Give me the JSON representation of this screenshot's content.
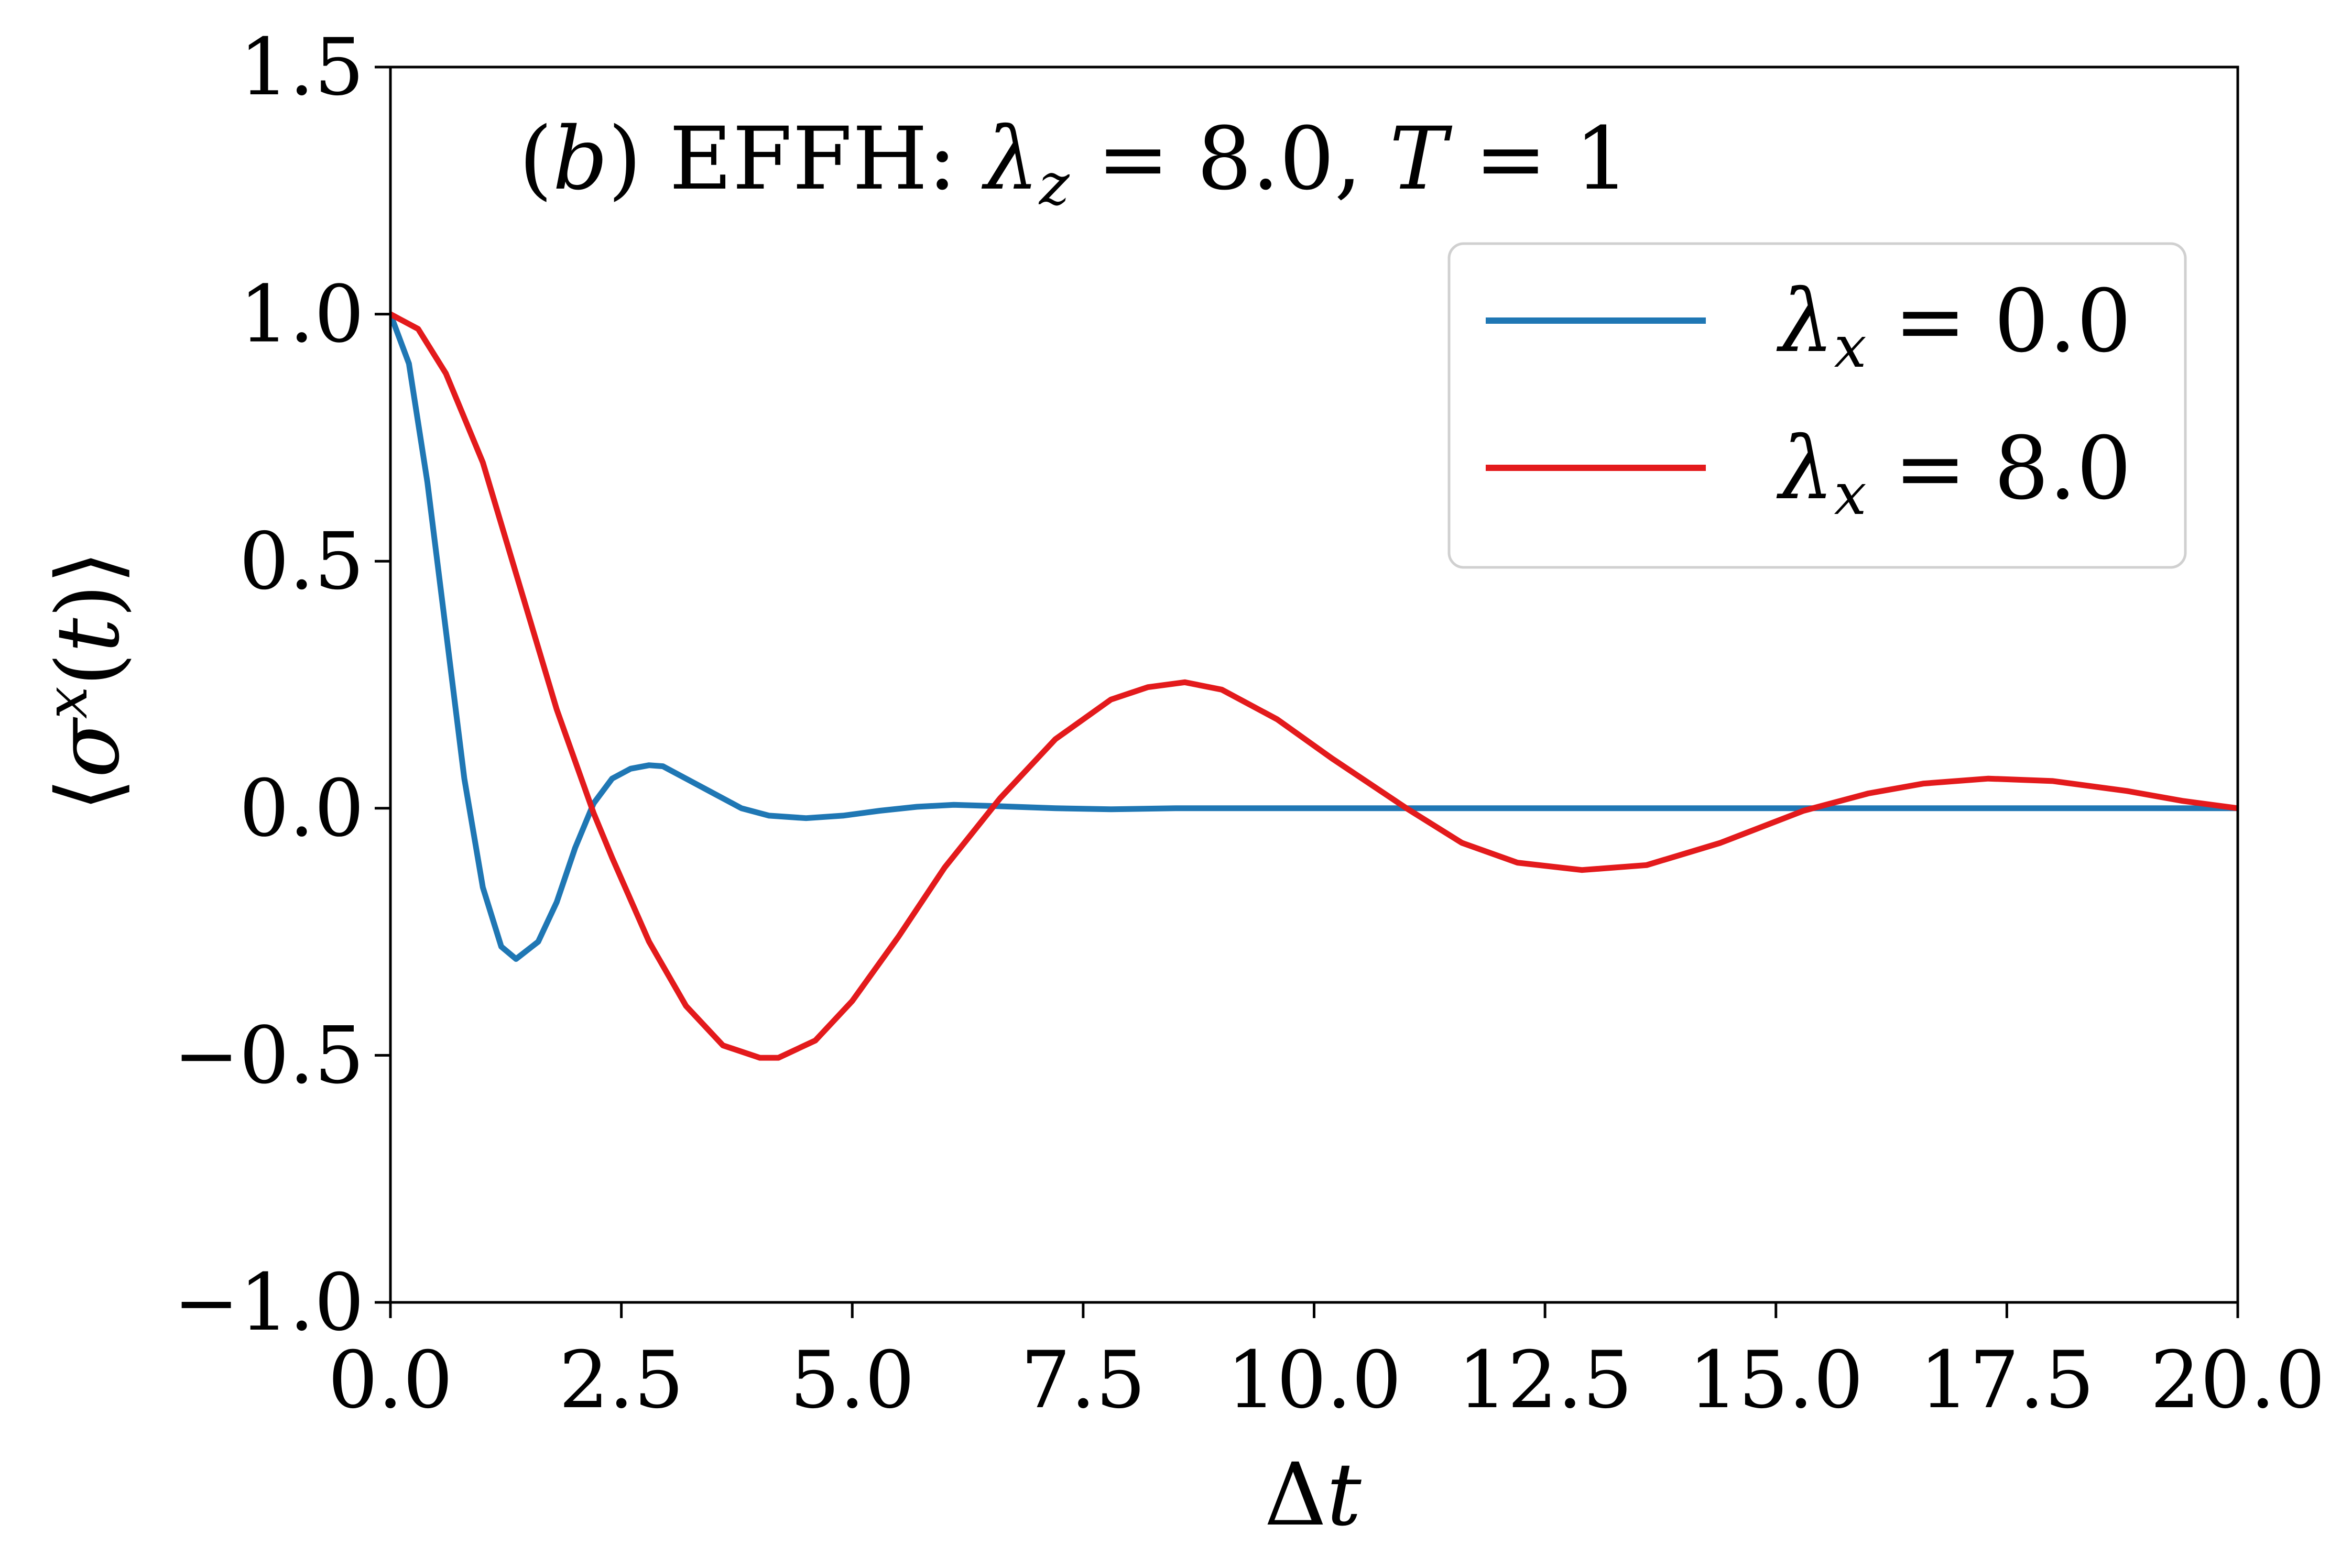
{
  "chart_data": {
    "type": "line",
    "annotation": {
      "prefix": "(",
      "panel": "b",
      "mid": ") EFFH: ",
      "lambda": "λ",
      "lambda_sub": "z",
      "rest": " = 8.0, ",
      "T": "T",
      "T_rest": " = 1"
    },
    "xlabel": {
      "delta": "Δ",
      "var": "t"
    },
    "ylabel": {
      "open": "⟨",
      "sigma": "σ",
      "sup": "x",
      "paren_open": "(",
      "t": "t",
      "paren_close": ")",
      "close": "⟩"
    },
    "xlim": [
      0,
      20
    ],
    "ylim": [
      -1.0,
      1.5
    ],
    "xticks": [
      0,
      2.5,
      5,
      7.5,
      10,
      12.5,
      15,
      17.5,
      20
    ],
    "xtick_labels": [
      "0.0",
      "2.5",
      "5.0",
      "7.5",
      "10.0",
      "12.5",
      "15.0",
      "17.5",
      "20.0"
    ],
    "yticks": [
      -1.0,
      -0.5,
      0.0,
      0.5,
      1.0,
      1.5
    ],
    "ytick_labels": [
      "−1.0",
      "−0.5",
      "0.0",
      "0.5",
      "1.0",
      "1.5"
    ],
    "grid": false,
    "legend_position": "upper-right",
    "series": [
      {
        "name": "λx = 0.0",
        "legend": {
          "lambda": "λ",
          "sub": "x",
          "rest": " = 0.0"
        },
        "color": "#1f77b4",
        "x": [
          0.0,
          0.2,
          0.4,
          0.6,
          0.8,
          1.0,
          1.2,
          1.36,
          1.6,
          1.8,
          2.0,
          2.2,
          2.4,
          2.6,
          2.8,
          2.95,
          3.2,
          3.5,
          3.8,
          4.1,
          4.5,
          4.9,
          5.3,
          5.7,
          6.1,
          6.6,
          7.2,
          7.8,
          8.5,
          9.5,
          11,
          13,
          15,
          17,
          20
        ],
        "y": [
          1.0,
          0.9,
          0.66,
          0.36,
          0.06,
          -0.16,
          -0.28,
          -0.305,
          -0.27,
          -0.19,
          -0.08,
          0.01,
          0.06,
          0.08,
          0.087,
          0.085,
          0.06,
          0.03,
          0.0,
          -0.015,
          -0.02,
          -0.015,
          -0.005,
          0.003,
          0.007,
          0.004,
          0.0,
          -0.002,
          0.0,
          0.0,
          0.0,
          0.0,
          0.0,
          0.0,
          0.0
        ]
      },
      {
        "name": "λx = 8.0",
        "legend": {
          "lambda": "λ",
          "sub": "x",
          "rest": " = 8.0"
        },
        "color": "#e31a1c",
        "x": [
          0.0,
          0.3,
          0.6,
          1.0,
          1.4,
          1.8,
          2.2,
          2.4,
          2.8,
          3.2,
          3.6,
          4.0,
          4.2,
          4.6,
          5.0,
          5.5,
          6.0,
          6.6,
          7.2,
          7.8,
          8.2,
          8.6,
          9.0,
          9.6,
          10.2,
          11.0,
          11.6,
          12.2,
          12.9,
          13.6,
          14.4,
          15.3,
          16.0,
          16.6,
          17.3,
          18.0,
          18.8,
          19.4,
          20.0
        ],
        "y": [
          1.0,
          0.97,
          0.88,
          0.7,
          0.45,
          0.2,
          -0.01,
          -0.1,
          -0.27,
          -0.4,
          -0.48,
          -0.505,
          -0.505,
          -0.47,
          -0.39,
          -0.26,
          -0.12,
          0.02,
          0.14,
          0.22,
          0.245,
          0.255,
          0.24,
          0.18,
          0.1,
          0.0,
          -0.07,
          -0.11,
          -0.125,
          -0.115,
          -0.07,
          -0.005,
          0.03,
          0.05,
          0.06,
          0.055,
          0.035,
          0.015,
          0.0
        ]
      }
    ]
  }
}
